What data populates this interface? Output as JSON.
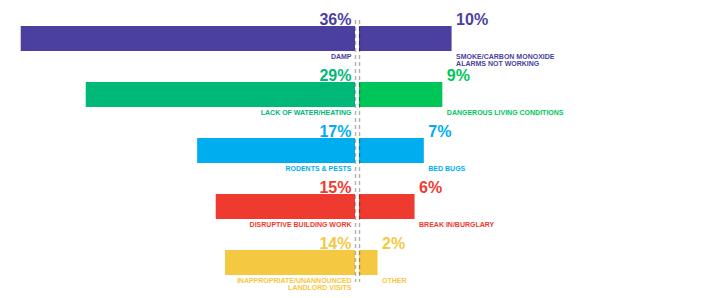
{
  "chart_data": [
    {
      "type": "bar",
      "orientation": "horizontal",
      "categories": [
        "DAMP",
        "LACK OF WATER/HEATING",
        "RODENTS & PESTS",
        "DISRUPTIVE BUILDING WORK",
        "INAPPROPRIATE/UNANNOUNCED\nLANDLORD VISITS"
      ],
      "values": [
        36,
        29,
        17,
        15,
        14
      ],
      "value_labels": [
        "36%",
        "29%",
        "17%",
        "15%",
        "14%"
      ],
      "colors": [
        "#4B3FA0",
        "#00B877",
        "#00AEEF",
        "#EE3A2F",
        "#F5C842"
      ],
      "xlim": [
        37.8,
        0
      ],
      "data_labels": true,
      "tick_labels": false
    },
    {
      "type": "bar",
      "orientation": "horizontal",
      "categories": [
        "SMOKE/CARBON MONOXIDE\nALARMS NOT WORKING",
        "DANGEROUS LIVING CONDITIONS",
        "BED BUGS",
        "BREAK IN/BURGLARY",
        "OTHER"
      ],
      "values": [
        10,
        9,
        7,
        6,
        2
      ],
      "value_labels": [
        "10%",
        "9%",
        "7%",
        "6%",
        "2%"
      ],
      "colors": [
        "#4B3FA0",
        "#00C65A",
        "#00AEEF",
        "#EE3A2F",
        "#F5C842"
      ],
      "xlim": [
        0,
        37.8
      ],
      "data_labels": true,
      "tick_labels": false
    }
  ]
}
